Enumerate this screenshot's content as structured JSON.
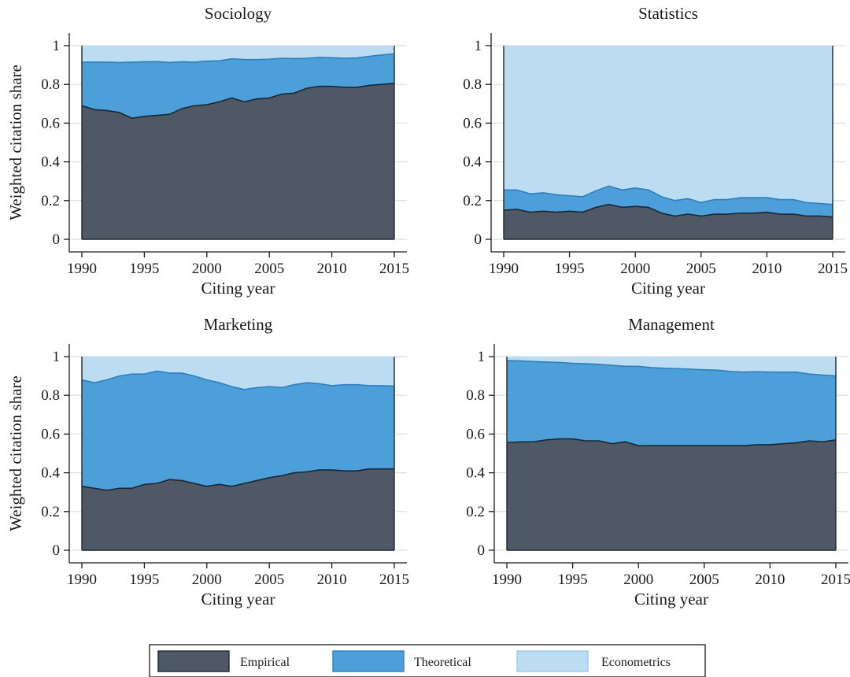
{
  "colors": {
    "Empirical": "#4f5966",
    "Theoretical": "#4c9fd8",
    "Econometrics": "#bcdcf1",
    "empirical_edge": "#1c2733",
    "theoretical_edge": "#2f7fbf"
  },
  "legend": {
    "placement": "bottom-center",
    "items": [
      {
        "name": "Empirical",
        "color": "#4f5966"
      },
      {
        "name": "Theoretical",
        "color": "#4c9fd8"
      },
      {
        "name": "Econometrics",
        "color": "#bcdcf1"
      }
    ]
  },
  "chart_data": [
    {
      "type": "area",
      "stacked": true,
      "title": "Sociology",
      "xlabel": "Citing year",
      "ylabel": "Weighted citation share",
      "xlim": [
        1990,
        2015
      ],
      "ylim": [
        0,
        1
      ],
      "grid": true,
      "x_ticks": [
        "1990",
        "1995",
        "2000",
        "2005",
        "2010",
        "2015"
      ],
      "y_ticks": [
        "0",
        "0.2",
        "0.4",
        "0.6",
        "0.8",
        "1"
      ],
      "x": [
        1990,
        1991,
        1992,
        1993,
        1994,
        1995,
        1996,
        1997,
        1998,
        1999,
        2000,
        2001,
        2002,
        2003,
        2004,
        2005,
        2006,
        2007,
        2008,
        2009,
        2010,
        2011,
        2012,
        2013,
        2014,
        2015
      ],
      "series": [
        {
          "name": "Empirical",
          "values": [
            0.69,
            0.67,
            0.665,
            0.655,
            0.625,
            0.635,
            0.64,
            0.645,
            0.675,
            0.69,
            0.695,
            0.71,
            0.73,
            0.71,
            0.725,
            0.73,
            0.75,
            0.755,
            0.78,
            0.79,
            0.79,
            0.785,
            0.785,
            0.795,
            0.8,
            0.805
          ]
        },
        {
          "name": "Theoretical",
          "values": [
            0.225,
            0.245,
            0.25,
            0.258,
            0.29,
            0.282,
            0.278,
            0.268,
            0.242,
            0.225,
            0.225,
            0.212,
            0.202,
            0.218,
            0.203,
            0.2,
            0.185,
            0.178,
            0.155,
            0.15,
            0.148,
            0.15,
            0.152,
            0.15,
            0.152,
            0.153
          ]
        },
        {
          "name": "Econometrics",
          "values": [
            0.085,
            0.085,
            0.085,
            0.087,
            0.085,
            0.083,
            0.082,
            0.087,
            0.083,
            0.085,
            0.08,
            0.078,
            0.068,
            0.072,
            0.072,
            0.07,
            0.065,
            0.067,
            0.065,
            0.06,
            0.062,
            0.065,
            0.063,
            0.055,
            0.048,
            0.042
          ]
        }
      ]
    },
    {
      "type": "area",
      "stacked": true,
      "title": "Statistics",
      "xlabel": "Citing year",
      "ylabel": "",
      "xlim": [
        1990,
        2015
      ],
      "ylim": [
        0,
        1
      ],
      "grid": true,
      "x_ticks": [
        "1990",
        "1995",
        "2000",
        "2005",
        "2010",
        "2015"
      ],
      "y_ticks": [
        "0",
        "0.2",
        "0.4",
        "0.6",
        "0.8",
        "1"
      ],
      "x": [
        1990,
        1991,
        1992,
        1993,
        1994,
        1995,
        1996,
        1997,
        1998,
        1999,
        2000,
        2001,
        2002,
        2003,
        2004,
        2005,
        2006,
        2007,
        2008,
        2009,
        2010,
        2011,
        2012,
        2013,
        2014,
        2015
      ],
      "series": [
        {
          "name": "Empirical",
          "values": [
            0.15,
            0.155,
            0.14,
            0.145,
            0.14,
            0.145,
            0.14,
            0.165,
            0.18,
            0.165,
            0.17,
            0.165,
            0.135,
            0.12,
            0.13,
            0.12,
            0.13,
            0.13,
            0.135,
            0.135,
            0.14,
            0.13,
            0.13,
            0.12,
            0.12,
            0.115
          ]
        },
        {
          "name": "Theoretical",
          "values": [
            0.105,
            0.1,
            0.095,
            0.095,
            0.09,
            0.08,
            0.08,
            0.085,
            0.095,
            0.09,
            0.095,
            0.09,
            0.085,
            0.08,
            0.08,
            0.07,
            0.075,
            0.075,
            0.08,
            0.08,
            0.075,
            0.075,
            0.075,
            0.07,
            0.065,
            0.065
          ]
        },
        {
          "name": "Econometrics",
          "values": [
            0.745,
            0.745,
            0.765,
            0.76,
            0.77,
            0.775,
            0.78,
            0.75,
            0.725,
            0.745,
            0.735,
            0.745,
            0.78,
            0.8,
            0.79,
            0.81,
            0.795,
            0.795,
            0.785,
            0.785,
            0.785,
            0.795,
            0.795,
            0.81,
            0.815,
            0.82
          ]
        }
      ]
    },
    {
      "type": "area",
      "stacked": true,
      "title": "Marketing",
      "xlabel": "Citing year",
      "ylabel": "Weighted citation share",
      "xlim": [
        1990,
        2015
      ],
      "ylim": [
        0,
        1
      ],
      "grid": true,
      "x_ticks": [
        "1990",
        "1995",
        "2000",
        "2005",
        "2010",
        "2015"
      ],
      "y_ticks": [
        "0",
        "0.2",
        "0.4",
        "0.6",
        "0.8",
        "1"
      ],
      "x": [
        1990,
        1991,
        1992,
        1993,
        1994,
        1995,
        1996,
        1997,
        1998,
        1999,
        2000,
        2001,
        2002,
        2003,
        2004,
        2005,
        2006,
        2007,
        2008,
        2009,
        2010,
        2011,
        2012,
        2013,
        2014,
        2015
      ],
      "series": [
        {
          "name": "Empirical",
          "values": [
            0.33,
            0.32,
            0.31,
            0.32,
            0.32,
            0.34,
            0.345,
            0.365,
            0.36,
            0.345,
            0.33,
            0.34,
            0.33,
            0.345,
            0.36,
            0.375,
            0.385,
            0.4,
            0.405,
            0.415,
            0.415,
            0.41,
            0.41,
            0.42,
            0.42,
            0.42
          ]
        },
        {
          "name": "Theoretical",
          "values": [
            0.55,
            0.545,
            0.57,
            0.58,
            0.59,
            0.57,
            0.58,
            0.55,
            0.555,
            0.555,
            0.55,
            0.525,
            0.515,
            0.485,
            0.48,
            0.47,
            0.455,
            0.455,
            0.46,
            0.445,
            0.435,
            0.445,
            0.445,
            0.43,
            0.43,
            0.428
          ]
        },
        {
          "name": "Econometrics",
          "values": [
            0.12,
            0.135,
            0.12,
            0.1,
            0.09,
            0.09,
            0.075,
            0.085,
            0.085,
            0.1,
            0.12,
            0.135,
            0.155,
            0.17,
            0.16,
            0.155,
            0.16,
            0.145,
            0.135,
            0.14,
            0.15,
            0.145,
            0.145,
            0.15,
            0.15,
            0.152
          ]
        }
      ]
    },
    {
      "type": "area",
      "stacked": true,
      "title": "Management",
      "xlabel": "Citing year",
      "ylabel": "",
      "xlim": [
        1990,
        2015
      ],
      "ylim": [
        0,
        1
      ],
      "grid": true,
      "x_ticks": [
        "1990",
        "1995",
        "2000",
        "2005",
        "2010",
        "2015"
      ],
      "y_ticks": [
        "0",
        "0.2",
        "0.4",
        "0.6",
        "0.8",
        "1"
      ],
      "x": [
        1990,
        1991,
        1992,
        1993,
        1994,
        1995,
        1996,
        1997,
        1998,
        1999,
        2000,
        2001,
        2002,
        2003,
        2004,
        2005,
        2006,
        2007,
        2008,
        2009,
        2010,
        2011,
        2012,
        2013,
        2014,
        2015
      ],
      "series": [
        {
          "name": "Empirical",
          "values": [
            0.555,
            0.56,
            0.56,
            0.57,
            0.575,
            0.575,
            0.565,
            0.565,
            0.55,
            0.56,
            0.54,
            0.54,
            0.54,
            0.54,
            0.54,
            0.54,
            0.54,
            0.54,
            0.54,
            0.545,
            0.545,
            0.55,
            0.555,
            0.565,
            0.56,
            0.57
          ]
        },
        {
          "name": "Theoretical",
          "values": [
            0.425,
            0.418,
            0.415,
            0.402,
            0.395,
            0.39,
            0.398,
            0.395,
            0.405,
            0.39,
            0.41,
            0.403,
            0.4,
            0.398,
            0.395,
            0.392,
            0.39,
            0.383,
            0.38,
            0.377,
            0.375,
            0.37,
            0.365,
            0.345,
            0.345,
            0.33
          ]
        },
        {
          "name": "Econometrics",
          "values": [
            0.02,
            0.022,
            0.025,
            0.028,
            0.03,
            0.035,
            0.037,
            0.04,
            0.045,
            0.05,
            0.05,
            0.057,
            0.06,
            0.062,
            0.065,
            0.068,
            0.07,
            0.077,
            0.08,
            0.078,
            0.08,
            0.08,
            0.08,
            0.09,
            0.095,
            0.1
          ]
        }
      ]
    }
  ]
}
